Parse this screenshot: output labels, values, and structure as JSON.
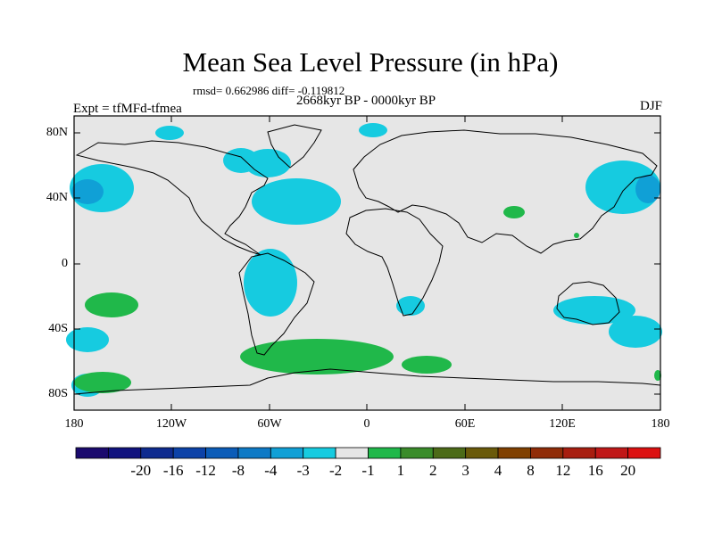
{
  "title": "Mean Sea Level Pressure (in hPa)",
  "stats_line": "rmsd= 0.662986 diff= -0.119812",
  "period": "2668kyr BP - 0000kyr BP",
  "experiment": "Expt = tfMFd-tfmea",
  "season": "DJF",
  "map": {
    "background_color": "#e6e6e6",
    "lat_ticks": [
      "80N",
      "40N",
      "0",
      "40S",
      "80S"
    ],
    "lon_ticks": [
      "180",
      "120W",
      "60W",
      "0",
      "60E",
      "120E",
      "180"
    ]
  },
  "colorbar": {
    "colors": [
      "#1b0a6e",
      "#10127e",
      "#0e2b8f",
      "#0c42a8",
      "#0b5cb8",
      "#0e7ac6",
      "#10a0d6",
      "#16cbe0",
      "#e6e6e6",
      "#20b84a",
      "#3a8c2a",
      "#4c6b18",
      "#6a5a0a",
      "#804000",
      "#902c08",
      "#a81e10",
      "#c01818",
      "#dc1010"
    ],
    "labels": [
      "-20",
      "-16",
      "-12",
      "-8",
      "-4",
      "-3",
      "-2",
      "-1",
      "1",
      "2",
      "3",
      "4",
      "8",
      "12",
      "16",
      "20"
    ]
  }
}
